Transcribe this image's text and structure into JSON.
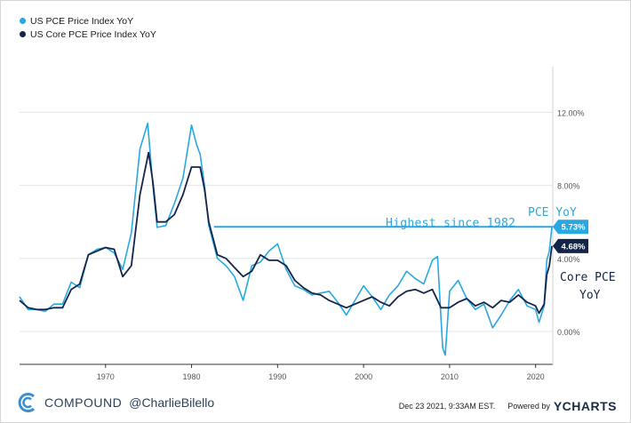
{
  "legend": {
    "items": [
      {
        "label": "US PCE Price Index YoY",
        "color": "#29a8df"
      },
      {
        "label": "US Core PCE Price Index YoY",
        "color": "#14254a"
      }
    ]
  },
  "annotations": {
    "highest": "Highest since 1982",
    "pce": "PCE YoY",
    "core_line1": "Core PCE",
    "core_line2": "YoY"
  },
  "badges": {
    "pce": "5.73%",
    "core": "4.68%"
  },
  "footer": {
    "brand": "COMPOUND",
    "handle": "@CharlieBilello",
    "timestamp": "Dec 23 2021, 9:33AM EST.",
    "powered_by": "Powered by",
    "provider": "YCHARTS"
  },
  "chart_data": {
    "type": "line",
    "title": "",
    "xlabel": "",
    "ylabel": "",
    "x_ticks": [
      "1970",
      "1980",
      "1990",
      "2000",
      "2010",
      "2020"
    ],
    "y_ticks": [
      "0.00%",
      "4.00%",
      "8.00%",
      "12.00%"
    ],
    "xlim": [
      1960,
      2022
    ],
    "ylim": [
      -1.8,
      14.5
    ],
    "grid": true,
    "legend_position": "top-left",
    "series": [
      {
        "name": "US PCE Price Index YoY",
        "color": "#29a8df",
        "points": [
          [
            1960,
            1.9
          ],
          [
            1961,
            1.2
          ],
          [
            1962,
            1.2
          ],
          [
            1963,
            1.1
          ],
          [
            1964,
            1.5
          ],
          [
            1965,
            1.5
          ],
          [
            1966,
            2.7
          ],
          [
            1967,
            2.4
          ],
          [
            1968,
            4.2
          ],
          [
            1969,
            4.5
          ],
          [
            1970,
            4.6
          ],
          [
            1971,
            4.3
          ],
          [
            1972,
            3.4
          ],
          [
            1973,
            5.4
          ],
          [
            1974,
            10.0
          ],
          [
            1974.9,
            11.4
          ],
          [
            1975.5,
            8.0
          ],
          [
            1976,
            5.7
          ],
          [
            1977,
            5.8
          ],
          [
            1978,
            7.0
          ],
          [
            1979,
            8.4
          ],
          [
            1980,
            11.3
          ],
          [
            1980.6,
            10.2
          ],
          [
            1981,
            9.7
          ],
          [
            1981.5,
            8.0
          ],
          [
            1982,
            5.8
          ],
          [
            1983,
            4.0
          ],
          [
            1984,
            3.6
          ],
          [
            1985,
            3.0
          ],
          [
            1986,
            1.7
          ],
          [
            1987,
            3.6
          ],
          [
            1988,
            3.8
          ],
          [
            1989,
            4.4
          ],
          [
            1990,
            4.8
          ],
          [
            1991,
            3.4
          ],
          [
            1992,
            2.5
          ],
          [
            1993,
            2.3
          ],
          [
            1994,
            2.0
          ],
          [
            1995,
            2.1
          ],
          [
            1996,
            2.2
          ],
          [
            1997,
            1.6
          ],
          [
            1998,
            0.9
          ],
          [
            1999,
            1.7
          ],
          [
            2000,
            2.5
          ],
          [
            2001,
            1.9
          ],
          [
            2002,
            1.2
          ],
          [
            2003,
            2.0
          ],
          [
            2004,
            2.5
          ],
          [
            2005,
            3.3
          ],
          [
            2006,
            2.9
          ],
          [
            2007,
            2.6
          ],
          [
            2008,
            3.9
          ],
          [
            2008.6,
            4.1
          ],
          [
            2009.2,
            -0.9
          ],
          [
            2009.5,
            -1.3
          ],
          [
            2010,
            2.2
          ],
          [
            2011,
            2.8
          ],
          [
            2012,
            1.8
          ],
          [
            2013,
            1.2
          ],
          [
            2014,
            1.5
          ],
          [
            2015,
            0.2
          ],
          [
            2016,
            0.9
          ],
          [
            2017,
            1.7
          ],
          [
            2018,
            2.3
          ],
          [
            2019,
            1.4
          ],
          [
            2020,
            1.2
          ],
          [
            2020.4,
            0.5
          ],
          [
            2021,
            1.4
          ],
          [
            2021.3,
            3.9
          ],
          [
            2021.6,
            4.4
          ],
          [
            2021.9,
            5.73
          ]
        ]
      },
      {
        "name": "US Core PCE Price Index YoY",
        "color": "#14254a",
        "points": [
          [
            1960,
            1.7
          ],
          [
            1961,
            1.3
          ],
          [
            1962,
            1.2
          ],
          [
            1963,
            1.2
          ],
          [
            1964,
            1.3
          ],
          [
            1965,
            1.3
          ],
          [
            1966,
            2.3
          ],
          [
            1967,
            2.6
          ],
          [
            1968,
            4.2
          ],
          [
            1969,
            4.4
          ],
          [
            1970,
            4.6
          ],
          [
            1971,
            4.5
          ],
          [
            1972,
            3.0
          ],
          [
            1973,
            3.6
          ],
          [
            1974,
            7.5
          ],
          [
            1975,
            9.8
          ],
          [
            1975.5,
            8.2
          ],
          [
            1976,
            6.0
          ],
          [
            1977,
            6.0
          ],
          [
            1978,
            6.4
          ],
          [
            1979,
            7.5
          ],
          [
            1980,
            9.0
          ],
          [
            1981,
            9.0
          ],
          [
            1981.5,
            7.8
          ],
          [
            1982,
            6.0
          ],
          [
            1983,
            4.2
          ],
          [
            1984,
            4.0
          ],
          [
            1985,
            3.5
          ],
          [
            1986,
            3.0
          ],
          [
            1987,
            3.3
          ],
          [
            1988,
            4.2
          ],
          [
            1989,
            3.9
          ],
          [
            1990,
            3.9
          ],
          [
            1991,
            3.6
          ],
          [
            1992,
            2.8
          ],
          [
            1993,
            2.4
          ],
          [
            1994,
            2.1
          ],
          [
            1995,
            2.0
          ],
          [
            1996,
            1.7
          ],
          [
            1997,
            1.5
          ],
          [
            1998,
            1.3
          ],
          [
            1999,
            1.5
          ],
          [
            2000,
            1.7
          ],
          [
            2001,
            1.9
          ],
          [
            2002,
            1.6
          ],
          [
            2003,
            1.4
          ],
          [
            2004,
            1.9
          ],
          [
            2005,
            2.2
          ],
          [
            2006,
            2.3
          ],
          [
            2007,
            2.1
          ],
          [
            2008,
            2.3
          ],
          [
            2009,
            1.3
          ],
          [
            2010,
            1.3
          ],
          [
            2011,
            1.6
          ],
          [
            2012,
            1.8
          ],
          [
            2013,
            1.4
          ],
          [
            2014,
            1.6
          ],
          [
            2015,
            1.3
          ],
          [
            2016,
            1.7
          ],
          [
            2017,
            1.6
          ],
          [
            2018,
            2.0
          ],
          [
            2019,
            1.6
          ],
          [
            2020,
            1.4
          ],
          [
            2020.4,
            1.0
          ],
          [
            2021,
            1.5
          ],
          [
            2021.3,
            3.1
          ],
          [
            2021.6,
            3.6
          ],
          [
            2021.9,
            4.68
          ]
        ]
      }
    ],
    "reference_line": {
      "label": "Highest since 1982",
      "y": 5.73,
      "x_start": 1982.6,
      "x_end": 2022
    }
  }
}
